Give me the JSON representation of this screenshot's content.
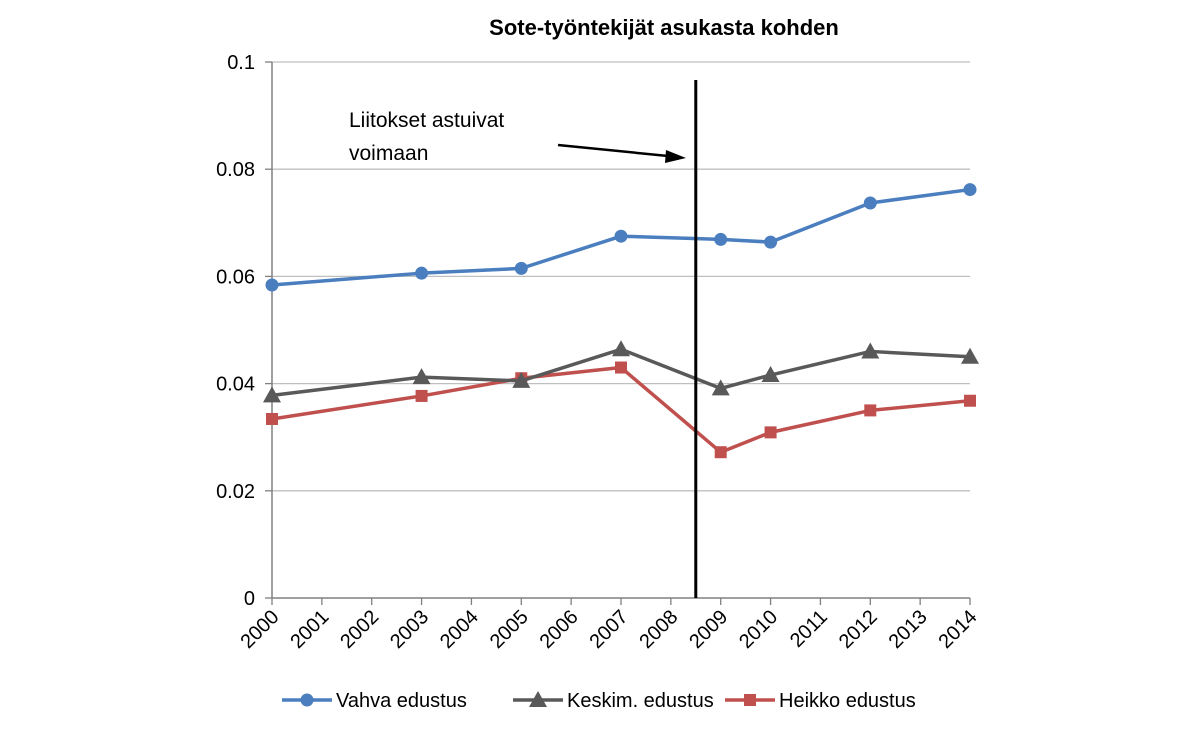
{
  "chart_data": {
    "type": "line",
    "title": "Sote-työntekijät asukasta kohden",
    "xlabel": "",
    "ylabel": "",
    "categories": [
      "2000",
      "2001",
      "2002",
      "2003",
      "2004",
      "2005",
      "2006",
      "2007",
      "2008",
      "2009",
      "2010",
      "2011",
      "2012",
      "2013",
      "2014"
    ],
    "ylim": [
      0,
      0.1
    ],
    "yticks": [
      "0",
      "0.02",
      "0.04",
      "0.06",
      "0.08",
      "0.1"
    ],
    "grid": true,
    "legend_position": "bottom",
    "series": [
      {
        "name": "Vahva edustus",
        "color": "#4a7ebf",
        "marker": "circle",
        "points": [
          {
            "x": "2000",
            "y": 0.0584
          },
          {
            "x": "2003",
            "y": 0.0606
          },
          {
            "x": "2005",
            "y": 0.0615
          },
          {
            "x": "2007",
            "y": 0.0675
          },
          {
            "x": "2009",
            "y": 0.0669
          },
          {
            "x": "2010",
            "y": 0.0664
          },
          {
            "x": "2012",
            "y": 0.0737
          },
          {
            "x": "2014",
            "y": 0.0762
          }
        ]
      },
      {
        "name": "Keskim. edustus",
        "color": "#595959",
        "marker": "triangle",
        "points": [
          {
            "x": "2000",
            "y": 0.0378
          },
          {
            "x": "2003",
            "y": 0.0412
          },
          {
            "x": "2005",
            "y": 0.0405
          },
          {
            "x": "2007",
            "y": 0.0464
          },
          {
            "x": "2009",
            "y": 0.0391
          },
          {
            "x": "2010",
            "y": 0.0416
          },
          {
            "x": "2012",
            "y": 0.046
          },
          {
            "x": "2014",
            "y": 0.045
          }
        ]
      },
      {
        "name": "Heikko edustus",
        "color": "#c0504d",
        "marker": "square",
        "points": [
          {
            "x": "2000",
            "y": 0.0334
          },
          {
            "x": "2003",
            "y": 0.0377
          },
          {
            "x": "2005",
            "y": 0.041
          },
          {
            "x": "2007",
            "y": 0.043
          },
          {
            "x": "2009",
            "y": 0.0272
          },
          {
            "x": "2010",
            "y": 0.0309
          },
          {
            "x": "2012",
            "y": 0.035
          },
          {
            "x": "2014",
            "y": 0.0368
          }
        ]
      }
    ],
    "vertical_line_at": "2008.5",
    "annotation": {
      "lines": [
        "Liitokset astuivat",
        "voimaan"
      ]
    }
  }
}
